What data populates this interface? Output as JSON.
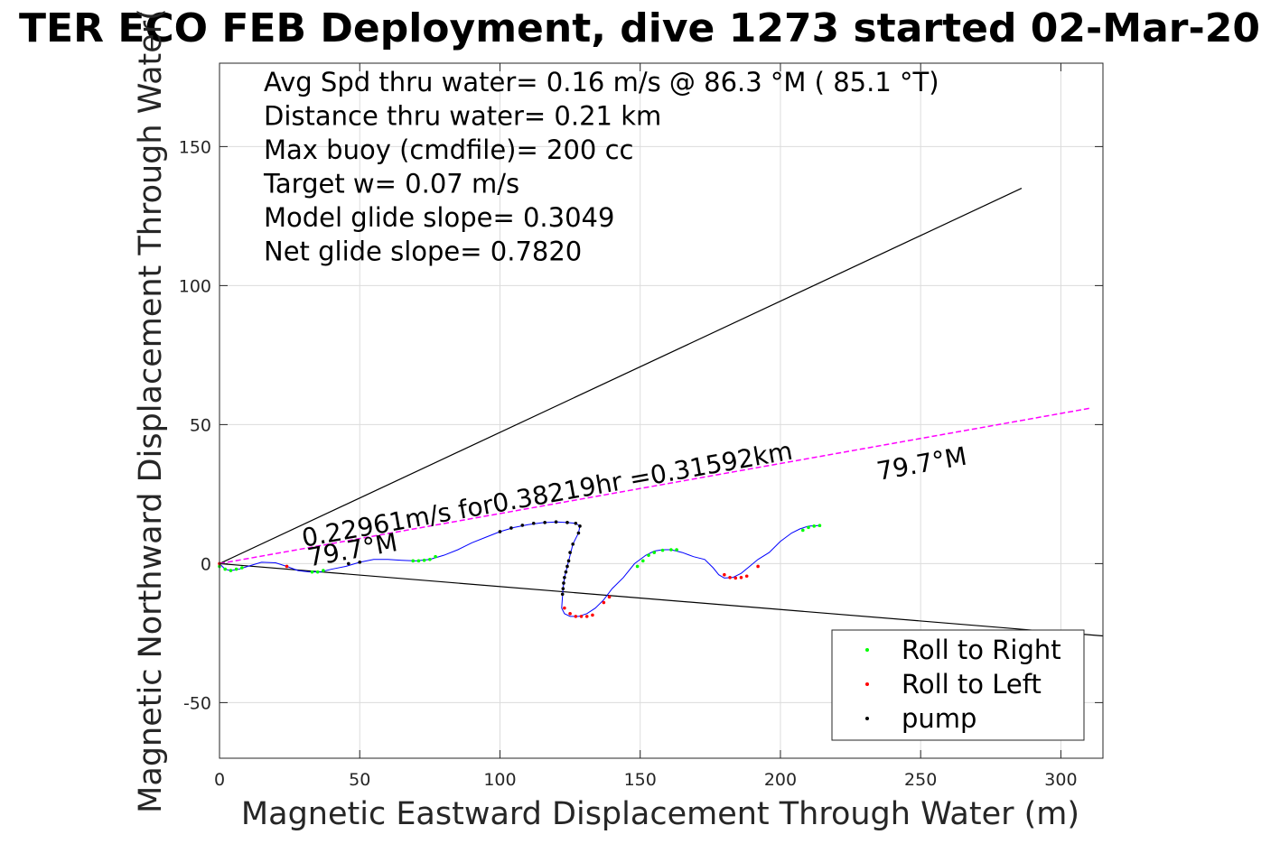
{
  "chart_data": {
    "type": "scatter",
    "title": "TER ECO FEB Deployment, dive 1273 started 02-Mar-20",
    "xlabel": "Magnetic Eastward Displacement Through Water (m)",
    "ylabel": "Magnetic Northward Displacement Through Water(",
    "xlim": [
      0,
      315
    ],
    "ylim": [
      -70,
      180
    ],
    "xticks": [
      0,
      50,
      100,
      150,
      200,
      250,
      300
    ],
    "yticks": [
      -50,
      0,
      50,
      100,
      150
    ],
    "xtick_labels": [
      "0",
      "50",
      "100",
      "150",
      "200",
      "250",
      "300"
    ],
    "ytick_labels": [
      "-50",
      "0",
      "50",
      "100",
      "150"
    ],
    "grid": true,
    "stats_lines": [
      "Avg Spd thru water=  0.16 m/s @  86.3 °M ( 85.1 °T)",
      "Distance thru water=  0.21 km",
      "Max buoy (cmdfile)= 200 cc",
      "Target w= 0.07 m/s",
      "Model glide slope= 0.3049",
      "Net glide slope= 0.7820"
    ],
    "annotations": [
      {
        "text": "0.22961m/s for0.38219hr =0.31592km",
        "x": 30,
        "y": 6,
        "angle_deg": 10.2
      },
      {
        "text": "79.7°M",
        "x": 32,
        "y": -1,
        "angle_deg": 10.2
      },
      {
        "text": "79.7°M",
        "x": 235,
        "y": 30,
        "angle_deg": 10.2
      }
    ],
    "reference_lines": [
      {
        "name": "upper-bound",
        "color": "#000000",
        "x": [
          0,
          286
        ],
        "y": [
          0,
          135
        ]
      },
      {
        "name": "lower-bound",
        "color": "#000000",
        "x": [
          0,
          315
        ],
        "y": [
          0,
          -26
        ]
      },
      {
        "name": "depth-average-current",
        "color": "#ff00ff",
        "x": [
          0,
          311
        ],
        "y": [
          0,
          56
        ]
      }
    ],
    "track": {
      "color": "#0000ff",
      "x": [
        0,
        2,
        4,
        7,
        10,
        15,
        20,
        24,
        28,
        32,
        36,
        40,
        45,
        50,
        55,
        60,
        65,
        70,
        75,
        80,
        85,
        90,
        95,
        100,
        105,
        110,
        115,
        120,
        124,
        127,
        128.5,
        128,
        126,
        125,
        124,
        123,
        122.5,
        122,
        123,
        125,
        128,
        131,
        134,
        137,
        140,
        144,
        148,
        152,
        155,
        158,
        161,
        165,
        169,
        173,
        176,
        178,
        180,
        183,
        186,
        189,
        192,
        196,
        200,
        204,
        207,
        210,
        213.5
      ],
      "y": [
        0,
        -2,
        -2.5,
        -2,
        -1,
        0.5,
        0.3,
        -1,
        -2.5,
        -3,
        -3,
        -2,
        -1,
        0.5,
        1.5,
        1.5,
        1.2,
        1,
        1.5,
        3,
        5,
        7.5,
        9.5,
        11.5,
        13,
        14,
        14.7,
        15,
        14.8,
        14.5,
        13.5,
        11,
        7,
        3,
        -1,
        -5,
        -9,
        -16,
        -18,
        -19,
        -19,
        -18,
        -16,
        -13,
        -9,
        -5,
        0,
        3,
        4.5,
        5,
        5,
        4,
        2.5,
        1.5,
        -1.5,
        -4,
        -5.2,
        -5,
        -3.5,
        -1,
        1.5,
        4,
        8,
        11,
        12.5,
        13.5,
        13.7
      ]
    },
    "series": [
      {
        "name": "Roll to Right",
        "color": "#00ff00",
        "x": [
          0,
          2,
          4,
          6,
          8,
          33,
          35,
          37,
          69,
          71,
          73,
          75,
          77,
          149,
          151,
          153,
          155,
          158,
          161,
          163,
          208,
          210,
          212,
          214
        ],
        "y": [
          -1,
          -2,
          -2.5,
          -2,
          -1.5,
          -3,
          -3,
          -2.5,
          1,
          1,
          1.2,
          1.5,
          2.5,
          -1,
          1,
          3,
          4,
          4.8,
          5,
          5,
          12,
          13,
          13.5,
          13.7
        ]
      },
      {
        "name": "Roll to Left",
        "color": "#ff0000",
        "x": [
          0,
          24,
          123,
          125,
          127,
          129,
          131,
          133,
          137,
          139,
          180,
          182,
          184,
          186,
          188,
          192
        ],
        "y": [
          0,
          -1,
          -16,
          -18,
          -19,
          -19,
          -19,
          -18.5,
          -14,
          -12,
          -4,
          -5,
          -5.2,
          -5,
          -4.5,
          -1
        ]
      },
      {
        "name": "pump",
        "color": "#000000",
        "x": [
          46,
          50,
          100,
          104,
          108,
          112,
          116,
          120,
          124,
          127,
          128.5,
          128,
          126,
          125,
          124.5,
          124,
          123.5,
          123,
          122.7,
          122.5,
          122.3
        ],
        "y": [
          0,
          0.5,
          11.5,
          12.8,
          13.8,
          14.5,
          14.8,
          15,
          14.8,
          14.5,
          13.5,
          11,
          7,
          4,
          1,
          -1,
          -3,
          -5,
          -7,
          -9,
          -11
        ]
      }
    ],
    "legend": {
      "position": "bottom-right",
      "entries": [
        {
          "label": "Roll to Right",
          "color": "#00ff00"
        },
        {
          "label": "Roll to Left",
          "color": "#ff0000"
        },
        {
          "label": "pump",
          "color": "#000000"
        }
      ]
    }
  }
}
